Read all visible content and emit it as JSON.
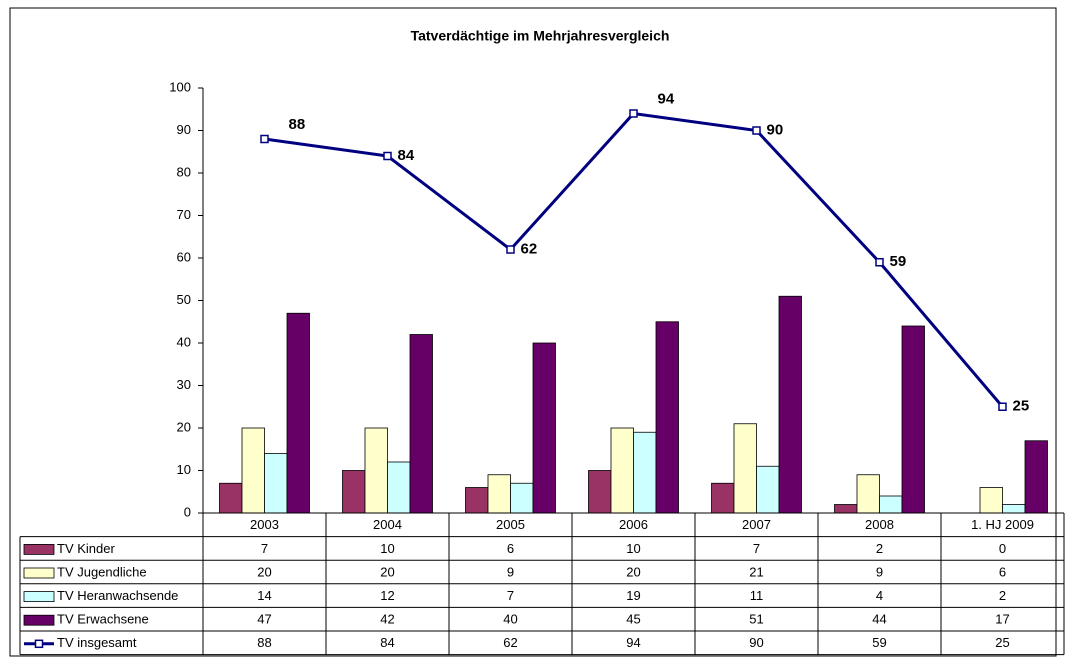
{
  "chart_data": {
    "type": "bar",
    "title": "Tatverdächtige im Mehrjahresvergleich",
    "categories": [
      "2003",
      "2004",
      "2005",
      "2006",
      "2007",
      "2008",
      "1. HJ 2009"
    ],
    "series": [
      {
        "name": "TV Kinder",
        "color": "#993366",
        "values": [
          7,
          10,
          6,
          10,
          7,
          2,
          0
        ]
      },
      {
        "name": "TV Jugendliche",
        "color": "#FFFFCC",
        "values": [
          20,
          20,
          9,
          20,
          21,
          9,
          6
        ]
      },
      {
        "name": "TV Heranwachsende",
        "color": "#CCFFFF",
        "values": [
          14,
          12,
          7,
          19,
          11,
          4,
          2
        ]
      },
      {
        "name": "TV Erwachsene",
        "color": "#660066",
        "values": [
          47,
          42,
          40,
          45,
          51,
          44,
          17
        ]
      },
      {
        "name": "TV insgesamt",
        "color": "#000080",
        "type": "line",
        "values": [
          88,
          84,
          62,
          94,
          90,
          59,
          25
        ]
      }
    ],
    "ylim": [
      0,
      100
    ],
    "yticks": [
      0,
      10,
      20,
      30,
      40,
      50,
      60,
      70,
      80,
      90,
      100
    ],
    "grid": false,
    "data_table": true
  }
}
